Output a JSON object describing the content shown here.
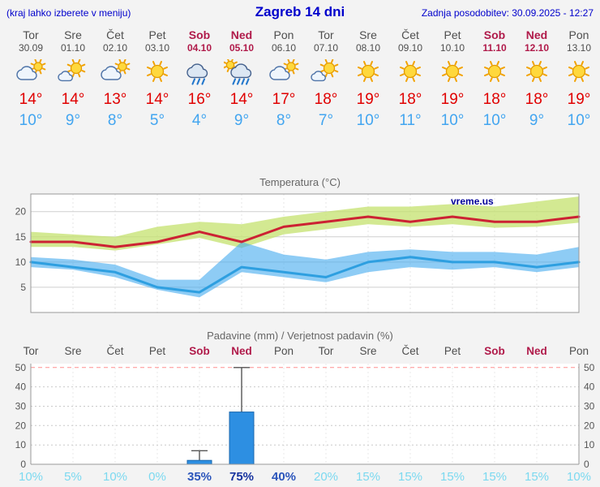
{
  "header": {
    "left_note": "(kraj lahko izberete v meniju)",
    "title": "Zagreb 14 dni",
    "updated": "Zadnja posodobitev: 30.09.2025 - 12:27"
  },
  "watermark": "vreme.us",
  "colors": {
    "accent_blue": "#0000cc",
    "high_temp_red": "#e00000",
    "low_temp_blue": "#42a5f0",
    "weekend_red": "#b01a4a",
    "bar_blue": "#2d8fe2"
  },
  "days": [
    {
      "name": "Tor",
      "date": "30.09",
      "weekend": false,
      "icon": "cloud-sun-icon",
      "high": "14°",
      "low": "10°"
    },
    {
      "name": "Sre",
      "date": "01.10",
      "weekend": false,
      "icon": "sun-cloud-icon",
      "high": "14°",
      "low": "9°"
    },
    {
      "name": "Čet",
      "date": "02.10",
      "weekend": false,
      "icon": "cloud-sun-icon",
      "high": "13°",
      "low": "8°"
    },
    {
      "name": "Pet",
      "date": "03.10",
      "weekend": false,
      "icon": "sun-icon",
      "high": "14°",
      "low": "5°"
    },
    {
      "name": "Sob",
      "date": "04.10",
      "weekend": true,
      "icon": "rain-icon",
      "high": "16°",
      "low": "4°"
    },
    {
      "name": "Ned",
      "date": "05.10",
      "weekend": true,
      "icon": "rain-sun-icon",
      "high": "14°",
      "low": "9°"
    },
    {
      "name": "Pon",
      "date": "06.10",
      "weekend": false,
      "icon": "cloud-sun-icon",
      "high": "17°",
      "low": "8°"
    },
    {
      "name": "Tor",
      "date": "07.10",
      "weekend": false,
      "icon": "sun-cloud-icon",
      "high": "18°",
      "low": "7°"
    },
    {
      "name": "Sre",
      "date": "08.10",
      "weekend": false,
      "icon": "sun-icon",
      "high": "19°",
      "low": "10°"
    },
    {
      "name": "Čet",
      "date": "09.10",
      "weekend": false,
      "icon": "sun-icon",
      "high": "18°",
      "low": "11°"
    },
    {
      "name": "Pet",
      "date": "10.10",
      "weekend": false,
      "icon": "sun-icon",
      "high": "19°",
      "low": "10°"
    },
    {
      "name": "Sob",
      "date": "11.10",
      "weekend": true,
      "icon": "sun-icon",
      "high": "18°",
      "low": "10°"
    },
    {
      "name": "Ned",
      "date": "12.10",
      "weekend": true,
      "icon": "sun-icon",
      "high": "18°",
      "low": "9°"
    },
    {
      "name": "Pon",
      "date": "13.10",
      "weekend": false,
      "icon": "sun-icon",
      "high": "19°",
      "low": "10°"
    }
  ],
  "chart_data": [
    {
      "type": "line",
      "title": "Temperatura (°C)",
      "x": [
        "Tor 30.09",
        "Sre 01.10",
        "Čet 02.10",
        "Pet 03.10",
        "Sob 04.10",
        "Ned 05.10",
        "Pon 06.10",
        "Tor 07.10",
        "Sre 08.10",
        "Čet 09.10",
        "Pet 10.10",
        "Sob 11.10",
        "Ned 12.10",
        "Pon 13.10"
      ],
      "ylim": [
        0,
        23.5
      ],
      "yticks": [
        5,
        10,
        15,
        20
      ],
      "grid": true,
      "legend": "none",
      "series": [
        {
          "name": "max_temp",
          "color": "#cc2233",
          "values": [
            14,
            14,
            13,
            14,
            16,
            14,
            17,
            18,
            19,
            18,
            19,
            18,
            18,
            19
          ]
        },
        {
          "name": "min_temp",
          "color": "#2e9fe0",
          "values": [
            10,
            9,
            8,
            5,
            4,
            9,
            8,
            7,
            10,
            11,
            10,
            10,
            9,
            10
          ]
        },
        {
          "name": "max_range_upper",
          "values": [
            16,
            15.5,
            15,
            17,
            18,
            17.5,
            19,
            20,
            21,
            21,
            21.5,
            21,
            22,
            23
          ]
        },
        {
          "name": "max_range_lower",
          "values": [
            13,
            13,
            12.3,
            13.5,
            14.8,
            12.8,
            15.5,
            16.5,
            17.5,
            17,
            17.5,
            16.8,
            17,
            17.8
          ]
        },
        {
          "name": "min_range_upper",
          "values": [
            11,
            10.5,
            9.5,
            6.5,
            6.5,
            14,
            11.5,
            10.5,
            12,
            12.5,
            12,
            12,
            11.5,
            13
          ]
        },
        {
          "name": "min_range_lower",
          "values": [
            9,
            8.5,
            7,
            4.5,
            3,
            8,
            7,
            6,
            8,
            9,
            8.5,
            9,
            8,
            9
          ]
        }
      ]
    },
    {
      "type": "bar",
      "title": "Padavine (mm) / Verjetnost padavin (%)",
      "categories": [
        "Tor",
        "Sre",
        "Čet",
        "Pet",
        "Sob",
        "Ned",
        "Pon",
        "Tor",
        "Sre",
        "Čet",
        "Pet",
        "Sob",
        "Ned",
        "Pon"
      ],
      "values": [
        0,
        0,
        0,
        0,
        2,
        27,
        0,
        0,
        0,
        0,
        0,
        0,
        0,
        0
      ],
      "precip_max_mm": [
        0,
        0,
        0,
        0,
        7,
        50,
        0,
        0,
        0,
        0,
        0,
        0,
        0,
        0
      ],
      "probability_pct": [
        10,
        5,
        10,
        0,
        35,
        75,
        40,
        20,
        15,
        15,
        15,
        15,
        15,
        10
      ],
      "ylim": [
        0,
        52
      ],
      "yticks": [
        0,
        10,
        20,
        30,
        40,
        50
      ],
      "grid": true
    }
  ]
}
